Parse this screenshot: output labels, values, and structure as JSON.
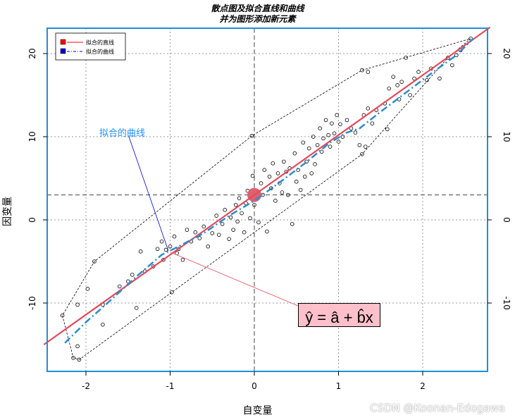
{
  "chart_data": {
    "type": "scatter",
    "title": "散点图及拟合直线和曲线",
    "subtitle": "并为图形添加新元素",
    "xlabel": "自变量",
    "ylabel": "因变量",
    "xlim": [
      -2.5,
      2.8
    ],
    "ylim": [
      -18.5,
      23
    ],
    "x_ticks": [
      -2,
      -1,
      0,
      1,
      2
    ],
    "y_ticks": [
      -10,
      0,
      10,
      20
    ],
    "grid": true,
    "grid_style": "dotted gray",
    "legend_position": "topleft",
    "legend": [
      {
        "label": "拟合的直线",
        "color": "#ff0000",
        "line_style": "solid"
      },
      {
        "label": "拟合的曲线",
        "color": "#0000cd",
        "line_style": "dash-dot"
      }
    ],
    "reference_lines": {
      "vline_x": 0,
      "hline_y": 3,
      "style": "dashed"
    },
    "center_point": {
      "x": 0,
      "y": 3,
      "color": "#e06070"
    },
    "fit_line": {
      "intercept": 3,
      "slope": 7.2,
      "x_range": [
        -2.5,
        2.8
      ],
      "color": "#e34a5a"
    },
    "fit_curve": {
      "color": "#2b8ccc",
      "points": [
        [
          -2.25,
          -14.8
        ],
        [
          -2.0,
          -12.3
        ],
        [
          -1.7,
          -9.6
        ],
        [
          -1.4,
          -6.8
        ],
        [
          -1.1,
          -4.2
        ],
        [
          -0.9,
          -3.2
        ],
        [
          -0.6,
          -1.6
        ],
        [
          -0.3,
          0.5
        ],
        [
          0,
          2.3
        ],
        [
          0.3,
          4.5
        ],
        [
          0.6,
          6.8
        ],
        [
          0.9,
          9.3
        ],
        [
          1.1,
          10.5
        ],
        [
          1.25,
          11.0
        ],
        [
          1.5,
          13.0
        ],
        [
          1.8,
          15.3
        ],
        [
          2.1,
          17.6
        ],
        [
          2.4,
          19.8
        ],
        [
          2.6,
          21.8
        ]
      ]
    },
    "convex_hull": [
      [
        -2.28,
        -11.5
      ],
      [
        -2.15,
        -16.6
      ],
      [
        -2.08,
        -16.8
      ],
      [
        -0.98,
        -8.7
      ],
      [
        1.28,
        7.9
      ],
      [
        2.3,
        19.5
      ],
      [
        2.57,
        21.8
      ],
      [
        1.28,
        18.0
      ],
      [
        -0.03,
        10.1
      ],
      [
        -1.9,
        -5.0
      ],
      [
        -2.28,
        -11.5
      ]
    ],
    "annotations": [
      {
        "text": "拟合的曲线",
        "x": -1.5,
        "y": 10.5,
        "arrow_to": [
          -1.0,
          -3.5
        ],
        "color": "#1e90ff"
      },
      {
        "text": "ŷ = â + b̂x",
        "x": 0.75,
        "y": -11.6,
        "box_fill": "#ffc0cb",
        "arrow_to": [
          -1.0,
          -3.8
        ]
      }
    ],
    "points": [
      [
        -2.28,
        -11.5
      ],
      [
        -2.15,
        -16.6
      ],
      [
        -2.08,
        -16.8
      ],
      [
        -2.1,
        -10.2
      ],
      [
        -2.1,
        -15.2
      ],
      [
        -1.98,
        -8.3
      ],
      [
        -1.9,
        -5.0
      ],
      [
        -1.8,
        -12.6
      ],
      [
        -1.8,
        -10.2
      ],
      [
        -1.6,
        -8.0
      ],
      [
        -1.5,
        -7.4
      ],
      [
        -1.45,
        -6.6
      ],
      [
        -1.4,
        -10.6
      ],
      [
        -1.35,
        -3.8
      ],
      [
        -1.3,
        -6.2
      ],
      [
        -1.2,
        -5.6
      ],
      [
        -1.15,
        -3.5
      ],
      [
        -1.1,
        -2.6
      ],
      [
        -1.08,
        -4.8
      ],
      [
        -1.05,
        -3.6
      ],
      [
        -1.0,
        -3.2
      ],
      [
        -0.98,
        -8.7
      ],
      [
        -0.95,
        -2.0
      ],
      [
        -0.92,
        -4.0
      ],
      [
        -0.9,
        -3.5
      ],
      [
        -0.85,
        -4.8
      ],
      [
        -0.8,
        -1.2
      ],
      [
        -0.75,
        -2.6
      ],
      [
        -0.7,
        -1.5
      ],
      [
        -0.65,
        -2.2
      ],
      [
        -0.6,
        -0.8
      ],
      [
        -0.55,
        -3.2
      ],
      [
        -0.5,
        -1.6
      ],
      [
        -0.45,
        0.5
      ],
      [
        -0.42,
        -1.8
      ],
      [
        -0.38,
        -0.5
      ],
      [
        -0.35,
        1.2
      ],
      [
        -0.3,
        -2.3
      ],
      [
        -0.28,
        0.3
      ],
      [
        -0.25,
        -1.2
      ],
      [
        -0.22,
        1.8
      ],
      [
        -0.2,
        -0.2
      ],
      [
        -0.18,
        2.6
      ],
      [
        -0.15,
        0.8
      ],
      [
        -0.12,
        -1.5
      ],
      [
        -0.1,
        2.0
      ],
      [
        -0.08,
        3.5
      ],
      [
        -0.05,
        0.2
      ],
      [
        -0.03,
        10.1
      ],
      [
        -0.02,
        5.3
      ],
      [
        0.0,
        1.8
      ],
      [
        0.02,
        2.6
      ],
      [
        0.05,
        -0.3
      ],
      [
        0.08,
        4.4
      ],
      [
        0.1,
        3.0
      ],
      [
        0.12,
        6.0
      ],
      [
        0.15,
        -1.4
      ],
      [
        0.18,
        5.2
      ],
      [
        0.2,
        3.8
      ],
      [
        0.22,
        6.8
      ],
      [
        0.25,
        2.3
      ],
      [
        0.28,
        5.6
      ],
      [
        0.3,
        4.4
      ],
      [
        0.33,
        3.3
      ],
      [
        0.35,
        7.0
      ],
      [
        0.38,
        5.8
      ],
      [
        0.4,
        3.0
      ],
      [
        0.42,
        6.2
      ],
      [
        0.45,
        -0.5
      ],
      [
        0.48,
        8.0
      ],
      [
        0.5,
        4.6
      ],
      [
        0.52,
        6.0
      ],
      [
        0.55,
        3.6
      ],
      [
        0.58,
        9.3
      ],
      [
        0.6,
        5.2
      ],
      [
        0.62,
        7.0
      ],
      [
        0.65,
        8.6
      ],
      [
        0.68,
        5.6
      ],
      [
        0.7,
        10.0
      ],
      [
        0.72,
        6.7
      ],
      [
        0.75,
        9.0
      ],
      [
        0.78,
        11.0
      ],
      [
        0.8,
        8.2
      ],
      [
        0.82,
        9.8
      ],
      [
        0.85,
        12.0
      ],
      [
        0.88,
        10.2
      ],
      [
        0.9,
        8.8
      ],
      [
        0.92,
        11.6
      ],
      [
        0.95,
        10.4
      ],
      [
        0.98,
        12.6
      ],
      [
        1.0,
        9.4
      ],
      [
        1.02,
        11.5
      ],
      [
        1.05,
        10.0
      ],
      [
        1.1,
        12.0
      ],
      [
        1.15,
        11.0
      ],
      [
        1.2,
        10.5
      ],
      [
        1.25,
        9.0
      ],
      [
        1.28,
        7.9
      ],
      [
        1.3,
        12.6
      ],
      [
        1.32,
        8.8
      ],
      [
        1.35,
        13.4
      ],
      [
        1.4,
        11.6
      ],
      [
        1.45,
        13.2
      ],
      [
        1.55,
        14.0
      ],
      [
        1.58,
        10.9
      ],
      [
        1.6,
        15.8
      ],
      [
        1.65,
        17.2
      ],
      [
        1.7,
        16.2
      ],
      [
        1.72,
        14.5
      ],
      [
        1.75,
        16.6
      ],
      [
        1.8,
        19.5
      ],
      [
        1.85,
        15.0
      ],
      [
        1.9,
        17.0
      ],
      [
        1.95,
        17.8
      ],
      [
        2.05,
        16.8
      ],
      [
        2.1,
        18.2
      ],
      [
        2.2,
        17.0
      ],
      [
        2.3,
        19.5
      ],
      [
        2.35,
        18.6
      ],
      [
        2.4,
        19.8
      ],
      [
        2.45,
        20.4
      ],
      [
        2.57,
        21.8
      ],
      [
        1.28,
        18.0
      ],
      [
        1.35,
        17.8
      ]
    ]
  },
  "titles": {
    "line1": "散点图及拟合直线和曲线",
    "line2": "并为图形添加新元素"
  },
  "axes": {
    "xlabel": "自变量",
    "ylabel": "因变量",
    "x_ticks": [
      "-2",
      "-1",
      "0",
      "1",
      "2"
    ],
    "y_ticks": [
      "-10",
      "0",
      "10",
      "20"
    ]
  },
  "legend": {
    "items": [
      {
        "label": "拟合的直线",
        "color": "#ff0000"
      },
      {
        "label": "拟合的曲线",
        "color": "#0000cd"
      }
    ]
  },
  "annotation_text": "拟合的曲线",
  "formula_text": "ŷ = â + b̂x",
  "watermark": "CSDN @Koonan-Edogawa",
  "colors": {
    "frame": "#1e90d8",
    "fit_line": "#e34a5a",
    "fit_curve": "#2b8ccc",
    "center_point": "#e06070",
    "formula_box": "#ffc0cb",
    "annotation": "#1e90ff"
  }
}
